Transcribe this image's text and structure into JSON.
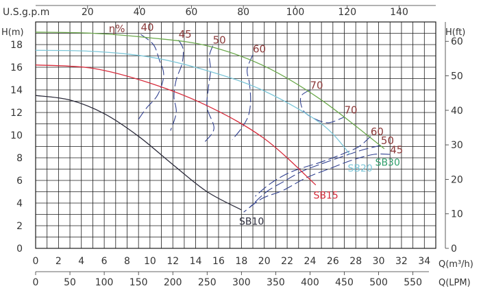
{
  "chart_data": {
    "type": "line",
    "axes": {
      "top_label": "U.S.g.p.m",
      "top_ticks": [
        20,
        40,
        60,
        80,
        100,
        120,
        140
      ],
      "left_label": "H(m)",
      "left_ticks": [
        0,
        2,
        4,
        6,
        8,
        10,
        12,
        14,
        16,
        18
      ],
      "right_label": "H(ft)",
      "right_ticks": [
        0,
        10,
        20,
        30,
        40,
        50,
        60
      ],
      "bottom_label_1": "Q(m³/h)",
      "bottom_ticks_1": [
        0,
        2,
        4,
        6,
        8,
        10,
        12,
        14,
        16,
        18,
        20,
        22,
        24,
        26,
        28,
        30,
        32,
        34
      ],
      "bottom_label_2": "Q(LPM)",
      "bottom_ticks_2": [
        0,
        50,
        100,
        150,
        200,
        250,
        300,
        350,
        400,
        450,
        500,
        550
      ],
      "xlim": [
        0,
        35
      ],
      "ylim": [
        0,
        20
      ],
      "grid": true
    },
    "series": [
      {
        "name": "SB10",
        "color": "#2b2b3b",
        "x": [
          0,
          3,
          6,
          9,
          12,
          15,
          18
        ],
        "y": [
          13.5,
          13.1,
          11.9,
          9.9,
          7.4,
          5.0,
          3.4
        ]
      },
      {
        "name": "SB15",
        "color": "#d62a3a",
        "x": [
          0,
          5,
          10,
          15,
          20,
          24.5
        ],
        "y": [
          16.2,
          15.9,
          14.6,
          12.6,
          9.7,
          5.6
        ]
      },
      {
        "name": "SB20",
        "color": "#7cc6d8",
        "x": [
          0,
          5,
          10,
          15,
          20,
          25,
          27.5
        ],
        "y": [
          17.5,
          17.4,
          16.9,
          15.7,
          13.9,
          11.0,
          8.3
        ]
      },
      {
        "name": "SB30",
        "color": "#6aa84a",
        "x": [
          0,
          5,
          10,
          15,
          20,
          25,
          30.5
        ],
        "y": [
          19.1,
          19.0,
          18.6,
          17.9,
          16.1,
          13.1,
          8.8
        ]
      }
    ],
    "efficiency_label": "η%",
    "efficiency_labels": [
      {
        "text": "40",
        "x": 9.2,
        "y": 19.2
      },
      {
        "text": "45",
        "x": 12.5,
        "y": 18.6
      },
      {
        "text": "50",
        "x": 15.5,
        "y": 18.1
      },
      {
        "text": "60",
        "x": 19.0,
        "y": 17.3
      },
      {
        "text": "70",
        "x": 24.0,
        "y": 14.1
      },
      {
        "text": "70",
        "x": 27.0,
        "y": 11.9
      },
      {
        "text": "60",
        "x": 29.3,
        "y": 10.0
      },
      {
        "text": "50",
        "x": 30.2,
        "y": 9.2
      },
      {
        "text": "45",
        "x": 31.0,
        "y": 8.4
      }
    ],
    "efficiency_contours": [
      [
        [
          9.2,
          18.9
        ],
        [
          10.3,
          18.0
        ],
        [
          10.8,
          16.7
        ],
        [
          11.2,
          15.3
        ],
        [
          10.7,
          13.6
        ],
        [
          9.7,
          12.4
        ],
        [
          9.0,
          11.4
        ]
      ],
      [
        [
          12.5,
          18.4
        ],
        [
          12.9,
          17.6
        ],
        [
          12.8,
          16.3
        ],
        [
          12.3,
          14.9
        ],
        [
          12.1,
          13.4
        ],
        [
          12.3,
          12.0
        ],
        [
          11.8,
          10.4
        ]
      ],
      [
        [
          15.5,
          17.9
        ],
        [
          15.2,
          17.0
        ],
        [
          15.3,
          15.7
        ],
        [
          15.1,
          14.1
        ],
        [
          15.0,
          12.4
        ],
        [
          15.6,
          10.6
        ],
        [
          14.8,
          9.4
        ]
      ],
      [
        [
          19.0,
          17.1
        ],
        [
          18.5,
          15.8
        ],
        [
          18.7,
          14.6
        ],
        [
          18.8,
          13.0
        ],
        [
          18.6,
          11.7
        ],
        [
          18.0,
          10.6
        ],
        [
          17.2,
          9.6
        ]
      ],
      [
        [
          24.0,
          14.0
        ],
        [
          23.2,
          13.4
        ],
        [
          23.4,
          12.2
        ],
        [
          24.3,
          11.5
        ],
        [
          25.6,
          11.1
        ],
        [
          27.0,
          11.6
        ]
      ],
      [
        [
          29.3,
          9.9
        ],
        [
          28.3,
          9.0
        ],
        [
          27.0,
          8.4
        ],
        [
          26.0,
          8.0
        ],
        [
          24.6,
          7.5
        ],
        [
          23.3,
          7.1
        ],
        [
          22.0,
          6.6
        ],
        [
          20.5,
          5.7
        ],
        [
          19.2,
          4.6
        ]
      ],
      [
        [
          30.2,
          9.1
        ],
        [
          28.6,
          8.7
        ],
        [
          26.8,
          8.1
        ],
        [
          25.1,
          7.5
        ],
        [
          23.3,
          6.8
        ],
        [
          21.7,
          5.9
        ],
        [
          20.2,
          5.0
        ],
        [
          18.7,
          3.6
        ]
      ],
      [
        [
          31.0,
          8.3
        ],
        [
          29.6,
          8.3
        ],
        [
          27.7,
          7.8
        ],
        [
          25.6,
          7.0
        ],
        [
          23.6,
          6.2
        ],
        [
          21.6,
          5.1
        ],
        [
          19.8,
          4.4
        ],
        [
          18.2,
          3.2
        ]
      ]
    ],
    "curve_labels": [
      {
        "text": "SB10",
        "x": 17.8,
        "y": 2.1,
        "color": "#2b2b3b"
      },
      {
        "text": "SB15",
        "x": 24.3,
        "y": 4.4,
        "color": "#d62a3a"
      },
      {
        "text": "SB20",
        "x": 27.3,
        "y": 6.8,
        "color": "#7cc6d8"
      },
      {
        "text": "SB30",
        "x": 29.7,
        "y": 7.3,
        "color": "#2e9e6a"
      }
    ],
    "colors": {
      "grid": "#1a1a1a",
      "axis_text": "#333333",
      "efficiency": "#8b3a3a",
      "contour": "#2f3f8f"
    }
  }
}
